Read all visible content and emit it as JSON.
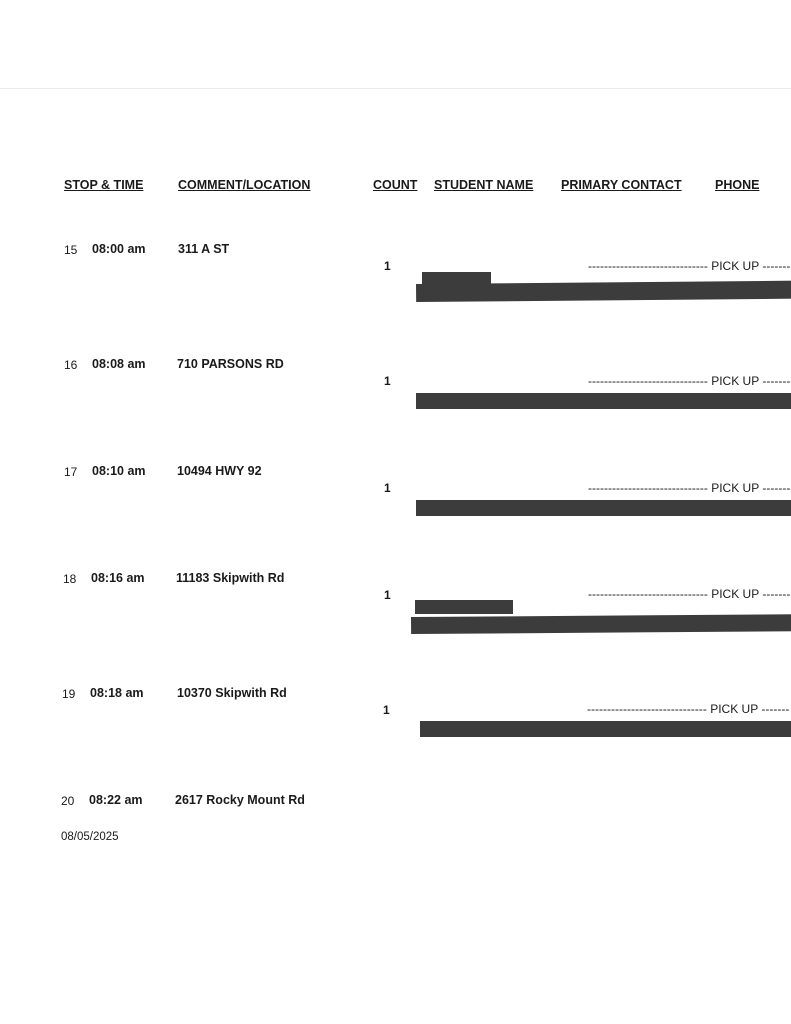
{
  "headers": {
    "stop_time": "STOP  &  TIME",
    "comment_location": "COMMENT/LOCATION",
    "count": "COUNT",
    "student_name": "STUDENT NAME",
    "primary_contact": "PRIMARY CONTACT",
    "phone": "PHONE"
  },
  "stops": [
    {
      "stop": "15",
      "time": "08:00 am",
      "location": "311  A  ST",
      "count": "1",
      "status": "------------------------------ PICK UP ------------------------------"
    },
    {
      "stop": "16",
      "time": "08:08 am",
      "location": "710 PARSONS RD",
      "count": "1",
      "status": "------------------------------ PICK UP ------------------------------"
    },
    {
      "stop": "17",
      "time": "08:10 am",
      "location": "10494 HWY 92",
      "count": "1",
      "status": "------------------------------ PICK UP ------------------------------"
    },
    {
      "stop": "18",
      "time": "08:16 am",
      "location": "11183 Skipwith Rd",
      "count": "1",
      "status": "------------------------------ PICK UP ------------------------------"
    },
    {
      "stop": "19",
      "time": "08:18 am",
      "location": "10370 Skipwith Rd",
      "count": "1",
      "status": "------------------------------ PICK UP ------------------------------"
    },
    {
      "stop": "20",
      "time": "08:22 am",
      "location": "2617 Rocky Mount Rd"
    }
  ],
  "footer_date": "08/05/2025",
  "colors": {
    "redaction": "#3c3c3c"
  }
}
